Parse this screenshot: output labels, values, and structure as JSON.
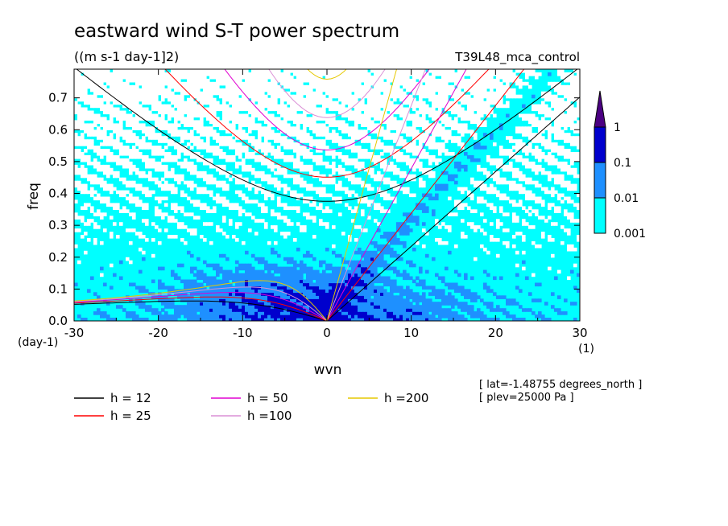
{
  "chart_data": {
    "type": "heatmap",
    "title": "eastward wind S-T power spectrum",
    "subtitle": "((m s-1 day-1]2)",
    "run_label": "T39L48_mca_control",
    "xlabel": "wvn",
    "ylabel": "freq",
    "xunit": "(1)",
    "yunit": "(day-1)",
    "xlim": [
      -30,
      30
    ],
    "ylim": [
      0.0,
      0.79
    ],
    "x_ticks": [
      -30,
      -20,
      -10,
      0,
      10,
      20,
      30
    ],
    "x_tick_labels": [
      "-30",
      "-20",
      "-10",
      "0",
      "10",
      "20",
      "30"
    ],
    "y_ticks": [
      0.0,
      0.1,
      0.2,
      0.3,
      0.4,
      0.5,
      0.6,
      0.7
    ],
    "y_tick_labels": [
      "0.0",
      "0.1",
      "0.2",
      "0.3",
      "0.4",
      "0.5",
      "0.6",
      "0.7"
    ],
    "colorbar": {
      "levels": [
        0.001,
        0.01,
        0.1,
        1
      ],
      "labels": [
        "0.001",
        "0.01",
        "0.1",
        "1"
      ],
      "colors": [
        "#00ffff",
        "#1e90ff",
        "#0000cd",
        "#4b0082"
      ]
    },
    "legend": {
      "placement": "bottom",
      "entries": [
        {
          "label": "h = 12",
          "color": "#000000",
          "h": 12
        },
        {
          "label": "h = 25",
          "color": "#ff0000",
          "h": 25
        },
        {
          "label": "h = 50",
          "color": "#e000d0",
          "h": 50
        },
        {
          "label": "h =100",
          "color": "#da8fd6",
          "h": 100
        },
        {
          "label": "h =200",
          "color": "#e6c800",
          "h": 200
        }
      ]
    },
    "annotations": [
      "[ lat=-1.48755 degrees_north ]",
      "[ plev=25000 Pa ]"
    ]
  }
}
